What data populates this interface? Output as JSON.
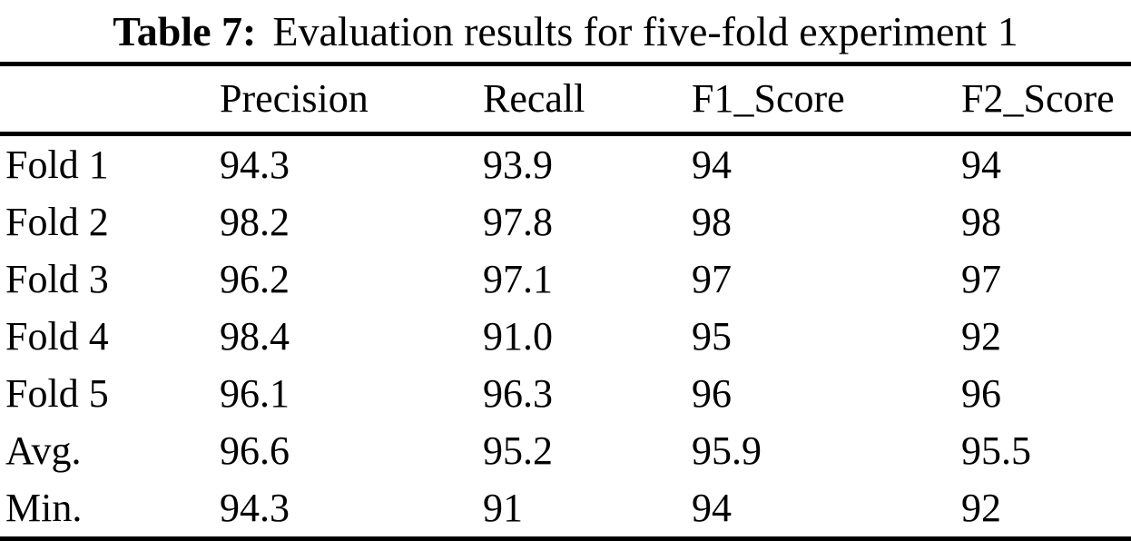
{
  "caption": {
    "label": "Table 7:",
    "text": "Evaluation results for five-fold experiment 1"
  },
  "table": {
    "columns": [
      "",
      "Precision",
      "Recall",
      "F1_Score",
      "F2_Score"
    ],
    "rows": [
      [
        "Fold 1",
        "94.3",
        "93.9",
        "94",
        "94"
      ],
      [
        "Fold 2",
        "98.2",
        "97.8",
        "98",
        "98"
      ],
      [
        "Fold 3",
        "96.2",
        "97.1",
        "97",
        "97"
      ],
      [
        "Fold 4",
        "98.4",
        "91.0",
        "95",
        "92"
      ],
      [
        "Fold 5",
        "96.1",
        "96.3",
        "96",
        "96"
      ],
      [
        "Avg.",
        "96.6",
        "95.2",
        "95.9",
        "95.5"
      ],
      [
        "Min.",
        "94.3",
        "91",
        "94",
        "92"
      ]
    ]
  }
}
